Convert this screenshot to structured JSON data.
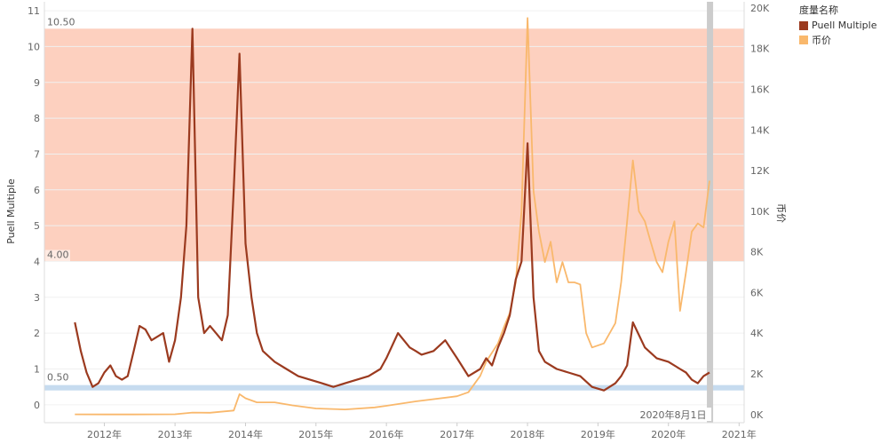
{
  "chart_data": {
    "type": "line",
    "title": "",
    "xlabel": "",
    "ylabel": "Puell Multiple",
    "y2label": "币价",
    "x_ticks": [
      "2012年",
      "2013年",
      "2014年",
      "2015年",
      "2016年",
      "2017年",
      "2018年",
      "2019年",
      "2020年",
      "2021年"
    ],
    "ylim": [
      -0.5,
      11.25
    ],
    "y_ticks": [
      0,
      1,
      2,
      3,
      4,
      5,
      6,
      7,
      8,
      9,
      10,
      11
    ],
    "y2lim": [
      -400,
      20300
    ],
    "y2_ticks": [
      "0K",
      "2K",
      "4K",
      "6K",
      "8K",
      "10K",
      "12K",
      "14K",
      "16K",
      "18K",
      "20K"
    ],
    "y2_tick_values": [
      0,
      2000,
      4000,
      6000,
      8000,
      10000,
      12000,
      14000,
      16000,
      18000,
      20000
    ],
    "bands": [
      {
        "from": 4.0,
        "to": 10.5,
        "color": "#fdd0bf",
        "label_from": "4.00",
        "label_to": "10.50"
      },
      {
        "from": 0.4,
        "to": 0.55,
        "color": "#c6dbef",
        "label": "0.50"
      }
    ],
    "reference_line": {
      "date": "2020-08-01",
      "label": "2020年8月1日",
      "color": "#cccccc"
    },
    "legend": {
      "title": "度量名称",
      "position": "top-right",
      "items": [
        {
          "name": "Puell Multiple",
          "color": "#9b3a1f"
        },
        {
          "name": "币价",
          "color": "#f9b86c"
        }
      ]
    },
    "series": [
      {
        "name": "Puell Multiple",
        "axis": "left",
        "color": "#9b3a1f",
        "x": [
          "2011-08-01",
          "2011-09-01",
          "2011-10-01",
          "2011-11-01",
          "2011-12-01",
          "2012-01-01",
          "2012-02-01",
          "2012-03-01",
          "2012-04-01",
          "2012-05-01",
          "2012-06-01",
          "2012-07-01",
          "2012-08-01",
          "2012-09-01",
          "2012-10-01",
          "2012-11-01",
          "2012-12-01",
          "2013-01-01",
          "2013-02-01",
          "2013-03-01",
          "2013-04-01",
          "2013-05-01",
          "2013-06-01",
          "2013-07-01",
          "2013-08-01",
          "2013-09-01",
          "2013-10-01",
          "2013-11-01",
          "2013-12-01",
          "2014-01-01",
          "2014-02-01",
          "2014-03-01",
          "2014-04-01",
          "2014-06-01",
          "2014-08-01",
          "2014-10-01",
          "2014-12-01",
          "2015-02-01",
          "2015-04-01",
          "2015-06-01",
          "2015-08-01",
          "2015-10-01",
          "2015-12-01",
          "2016-01-01",
          "2016-03-01",
          "2016-05-01",
          "2016-06-01",
          "2016-07-01",
          "2016-09-01",
          "2016-11-01",
          "2017-01-01",
          "2017-03-01",
          "2017-05-01",
          "2017-06-01",
          "2017-07-01",
          "2017-08-01",
          "2017-09-01",
          "2017-10-01",
          "2017-11-01",
          "2017-12-01",
          "2018-01-01",
          "2018-02-01",
          "2018-03-01",
          "2018-04-01",
          "2018-06-01",
          "2018-08-01",
          "2018-10-01",
          "2018-12-01",
          "2019-02-01",
          "2019-04-01",
          "2019-05-01",
          "2019-06-01",
          "2019-07-01",
          "2019-09-01",
          "2019-11-01",
          "2020-01-01",
          "2020-03-01",
          "2020-04-01",
          "2020-05-01",
          "2020-06-01",
          "2020-07-01",
          "2020-08-01"
        ],
        "y": [
          2.3,
          1.5,
          0.9,
          0.5,
          0.6,
          0.9,
          1.1,
          0.8,
          0.7,
          0.8,
          1.5,
          2.2,
          2.1,
          1.8,
          1.9,
          2.0,
          1.2,
          1.8,
          3.0,
          5.0,
          10.5,
          3.0,
          2.0,
          2.2,
          2.0,
          1.8,
          2.5,
          6.0,
          9.8,
          4.5,
          3.0,
          2.0,
          1.5,
          1.2,
          1.0,
          0.8,
          0.7,
          0.6,
          0.5,
          0.6,
          0.7,
          0.8,
          1.0,
          1.3,
          2.0,
          1.6,
          1.5,
          1.4,
          1.5,
          1.8,
          1.3,
          0.8,
          1.0,
          1.3,
          1.1,
          1.6,
          2.0,
          2.5,
          3.5,
          4.0,
          7.3,
          3.0,
          1.5,
          1.2,
          1.0,
          0.9,
          0.8,
          0.5,
          0.4,
          0.6,
          0.8,
          1.1,
          2.3,
          1.6,
          1.3,
          1.2,
          1.0,
          0.9,
          0.7,
          0.6,
          0.8,
          0.9
        ]
      },
      {
        "name": "币价",
        "axis": "right",
        "color": "#f9b86c",
        "x": [
          "2011-08-01",
          "2012-01-01",
          "2012-06-01",
          "2013-01-01",
          "2013-04-01",
          "2013-07-01",
          "2013-11-01",
          "2013-12-01",
          "2014-01-01",
          "2014-03-01",
          "2014-06-01",
          "2014-09-01",
          "2015-01-01",
          "2015-06-01",
          "2015-11-01",
          "2016-01-01",
          "2016-06-01",
          "2017-01-01",
          "2017-03-01",
          "2017-05-01",
          "2017-06-01",
          "2017-08-01",
          "2017-09-01",
          "2017-10-01",
          "2017-11-01",
          "2017-12-01",
          "2018-01-01",
          "2018-02-01",
          "2018-03-01",
          "2018-04-01",
          "2018-05-01",
          "2018-06-01",
          "2018-07-01",
          "2018-08-01",
          "2018-09-01",
          "2018-10-01",
          "2018-11-01",
          "2018-12-01",
          "2019-02-01",
          "2019-04-01",
          "2019-05-01",
          "2019-06-01",
          "2019-07-01",
          "2019-08-01",
          "2019-09-01",
          "2019-10-01",
          "2019-11-01",
          "2019-12-01",
          "2020-01-01",
          "2020-02-01",
          "2020-03-01",
          "2020-04-01",
          "2020-05-01",
          "2020-06-01",
          "2020-07-01",
          "2020-08-01"
        ],
        "y": [
          10,
          6,
          6,
          15,
          100,
          90,
          200,
          1000,
          800,
          600,
          600,
          450,
          300,
          250,
          350,
          430,
          650,
          900,
          1100,
          1900,
          2600,
          3500,
          4300,
          5000,
          6500,
          10000,
          19500,
          11000,
          9000,
          7500,
          8500,
          6500,
          7500,
          6500,
          6500,
          6400,
          4000,
          3300,
          3500,
          4500,
          6500,
          9500,
          12500,
          10000,
          9500,
          8500,
          7500,
          7000,
          8500,
          9500,
          5100,
          7000,
          9000,
          9400,
          9200,
          11500
        ]
      }
    ]
  }
}
